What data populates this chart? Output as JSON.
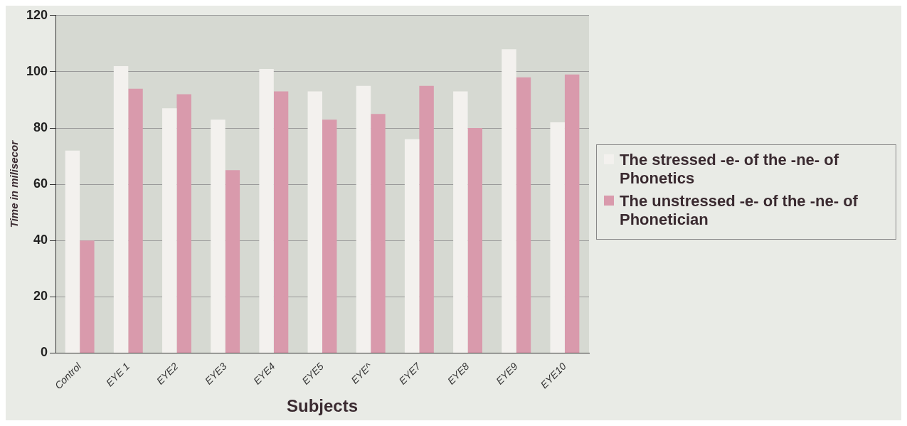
{
  "chart_data": {
    "type": "bar",
    "xlabel": "Subjects",
    "ylabel": "Time in milisecor",
    "categories": [
      "Control",
      "EYE 1",
      "EYE2",
      "EYE3",
      "EYE4",
      "EYE5",
      "EYE^",
      "EYE7",
      "EYE8",
      "EYE9",
      "EYE10"
    ],
    "series": [
      {
        "name": "The stressed -e- of the -ne- of Phonetics",
        "color": "#f3f1ee",
        "values": [
          72,
          102,
          87,
          83,
          101,
          93,
          95,
          76,
          93,
          108,
          82
        ]
      },
      {
        "name": "The unstressed -e- of the -ne- of Phonetician",
        "color": "#d99aac",
        "values": [
          40,
          94,
          92,
          65,
          93,
          83,
          85,
          95,
          80,
          98,
          99
        ]
      }
    ],
    "ylim": [
      0,
      120
    ],
    "yticks": [
      0,
      20,
      40,
      60,
      80,
      100,
      120
    ],
    "grid": "y",
    "legend": "right"
  }
}
